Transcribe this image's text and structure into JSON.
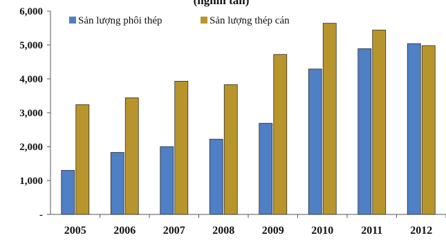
{
  "chart_data": {
    "type": "bar",
    "title": "(nghìn tấn)",
    "categories": [
      "2005",
      "2006",
      "2007",
      "2008",
      "2009",
      "2010",
      "2011",
      "2012"
    ],
    "series": [
      {
        "name": "Sản lượng phôi thép",
        "color": "#4f7fc4",
        "values": [
          1300,
          1830,
          2000,
          2220,
          2690,
          4290,
          4890,
          5040
        ]
      },
      {
        "name": "Sản lượng thép cán",
        "color": "#b8952c",
        "values": [
          3240,
          3440,
          3930,
          3830,
          4720,
          5640,
          5440,
          4980
        ]
      }
    ],
    "ylim": [
      0,
      6000
    ],
    "yticks": [
      "-",
      "1,000",
      "2,000",
      "3,000",
      "4,000",
      "5,000",
      "6,000"
    ],
    "grid": false,
    "legend_position": "top-left"
  }
}
